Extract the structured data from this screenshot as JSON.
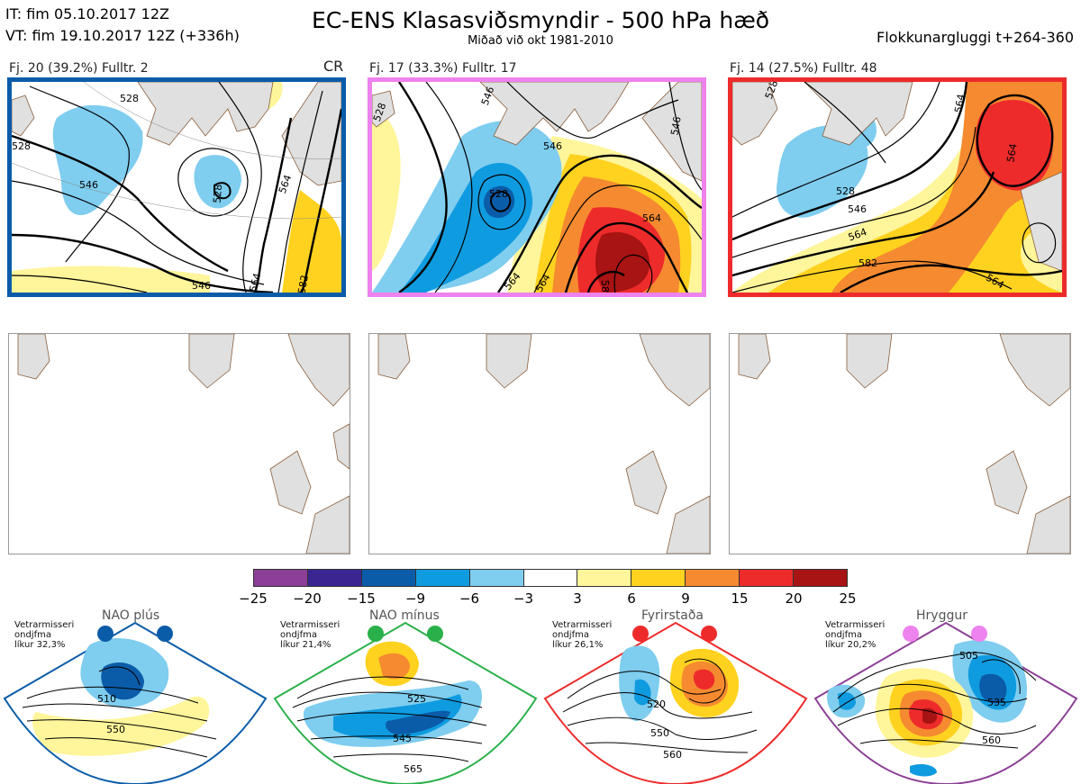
{
  "header": {
    "it_line": "IT: fim 05.10.2017 12Z",
    "vt_line": "VT: fim 19.10.2017 12Z  (+336h)",
    "title": "EC-ENS Klasasviðsmyndir - 500 hPa hæð",
    "subtitle": "Miðað við okt 1981-2010",
    "right": "Flokkunargluggi t+264-360"
  },
  "clusters": [
    {
      "label": "Fj. 20 (39.2%)  Fulltr. 2",
      "tag": "CR",
      "frame_color": "#0b5ca8",
      "contours": [
        "528",
        "528",
        "528",
        "546",
        "546",
        "564",
        "564",
        "582"
      ]
    },
    {
      "label": "Fj. 17 (33.3%)  Fulltr. 17",
      "tag": "",
      "frame_color": "#ee82ee",
      "contours": [
        "528",
        "528",
        "546",
        "546",
        "564",
        "546",
        "564",
        "564",
        "582"
      ]
    },
    {
      "label": "Fj. 14 (27.5%)  Fulltr. 48",
      "tag": "",
      "frame_color": "#ee2b2b",
      "contours": [
        "528",
        "528",
        "546",
        "564",
        "564",
        "564",
        "582",
        "564"
      ]
    }
  ],
  "colorbar": {
    "ticks": [
      "−25",
      "−20",
      "−15",
      "−9",
      "−6",
      "−3",
      "3",
      "6",
      "9",
      "15",
      "20",
      "25"
    ],
    "colors": [
      "#8c3f96",
      "#3b2591",
      "#0b5ca8",
      "#0f9be0",
      "#7fcdef",
      "#ffffff",
      "#fff59a",
      "#ffd21f",
      "#f58a30",
      "#ee2b2b",
      "#a81313"
    ]
  },
  "regimes": [
    {
      "name": "NAO plús",
      "note": [
        "Vetrarmisseri",
        "ondjfma",
        "líkur 32,3%"
      ],
      "color": "#0b5ca8",
      "contours": [
        "510",
        "550"
      ]
    },
    {
      "name": "NAO mínus",
      "note": [
        "Vetrarmisseri",
        "ondjfma",
        "líkur 21,4%"
      ],
      "color": "#2ab04a",
      "contours": [
        "525",
        "545",
        "565"
      ]
    },
    {
      "name": "Fyrirstaða",
      "note": [
        "Vetrarmisseri",
        "ondjfma",
        "líkur 26,1%"
      ],
      "color": "#ee2b2b",
      "contours": [
        "520",
        "550",
        "560"
      ]
    },
    {
      "name": "Hryggur",
      "note": [
        "Vetrarmisseri",
        "ondjfma",
        "líkur 20,2%"
      ],
      "color": "#ee82ee",
      "contours": [
        "505",
        "535",
        "560"
      ]
    }
  ]
}
